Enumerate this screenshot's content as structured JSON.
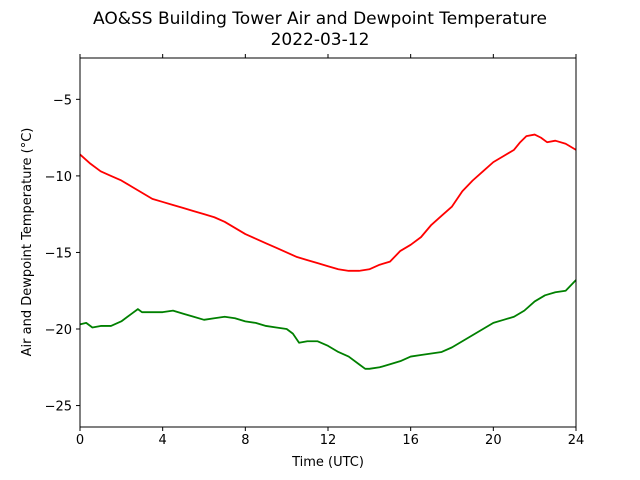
{
  "chart_data": {
    "type": "line",
    "title": "AO&SS Building Tower Air and Dewpoint Temperature",
    "subtitle": "2022-03-12",
    "xlabel": "Time (UTC)",
    "ylabel": "Air and Dewpoint Temperature (°C)",
    "xlim": [
      0,
      24
    ],
    "ylim": [
      -26.4,
      -2.3
    ],
    "xticks": [
      0,
      4,
      8,
      12,
      16,
      20,
      24
    ],
    "yticks": [
      -25,
      -20,
      -15,
      -10,
      -5
    ],
    "ytick_labels": [
      "−25",
      "−20",
      "−15",
      "−10",
      "−5"
    ],
    "grid": false,
    "series": [
      {
        "color": "#ff0000",
        "x": [
          0,
          0.5,
          1,
          1.5,
          2,
          2.5,
          3,
          3.5,
          4,
          4.5,
          5,
          5.5,
          6,
          6.5,
          7,
          7.5,
          8,
          8.5,
          9,
          9.5,
          10,
          10.5,
          11,
          11.5,
          12,
          12.5,
          13,
          13.5,
          14,
          14.5,
          15,
          15.5,
          16,
          16.5,
          17,
          17.5,
          18,
          18.5,
          19,
          19.5,
          20,
          20.5,
          21,
          21.3,
          21.6,
          22,
          22.3,
          22.6,
          23,
          23.5,
          24
        ],
        "y": [
          -8.6,
          -9.2,
          -9.7,
          -10.0,
          -10.3,
          -10.7,
          -11.1,
          -11.5,
          -11.7,
          -11.9,
          -12.1,
          -12.3,
          -12.5,
          -12.7,
          -13.0,
          -13.4,
          -13.8,
          -14.1,
          -14.4,
          -14.7,
          -15.0,
          -15.3,
          -15.5,
          -15.7,
          -15.9,
          -16.1,
          -16.2,
          -16.2,
          -16.1,
          -15.8,
          -15.6,
          -14.9,
          -14.5,
          -14.0,
          -13.2,
          -12.6,
          -12.0,
          -11.0,
          -10.3,
          -9.7,
          -9.1,
          -8.7,
          -8.3,
          -7.8,
          -7.4,
          -7.3,
          -7.5,
          -7.8,
          -7.7,
          -7.9,
          -8.3
        ]
      },
      {
        "color": "#008000",
        "x": [
          0,
          0.3,
          0.6,
          1,
          1.5,
          2,
          2.5,
          2.8,
          3,
          3.5,
          4,
          4.5,
          5,
          5.5,
          6,
          6.5,
          7,
          7.5,
          8,
          8.5,
          9,
          9.5,
          10,
          10.3,
          10.6,
          11,
          11.5,
          12,
          12.5,
          13,
          13.5,
          13.8,
          14,
          14.5,
          15,
          15.5,
          16,
          16.5,
          17,
          17.5,
          18,
          18.5,
          19,
          19.5,
          20,
          20.5,
          21,
          21.5,
          22,
          22.5,
          23,
          23.5,
          24
        ],
        "y": [
          -19.7,
          -19.6,
          -19.9,
          -19.8,
          -19.8,
          -19.5,
          -19.0,
          -18.7,
          -18.9,
          -18.9,
          -18.9,
          -18.8,
          -19.0,
          -19.2,
          -19.4,
          -19.3,
          -19.2,
          -19.3,
          -19.5,
          -19.6,
          -19.8,
          -19.9,
          -20.0,
          -20.3,
          -20.9,
          -20.8,
          -20.8,
          -21.1,
          -21.5,
          -21.8,
          -22.3,
          -22.6,
          -22.6,
          -22.5,
          -22.3,
          -22.1,
          -21.8,
          -21.7,
          -21.6,
          -21.5,
          -21.2,
          -20.8,
          -20.4,
          -20.0,
          -19.6,
          -19.4,
          -19.2,
          -18.8,
          -18.2,
          -17.8,
          -17.6,
          -17.5,
          -16.8
        ]
      }
    ]
  }
}
